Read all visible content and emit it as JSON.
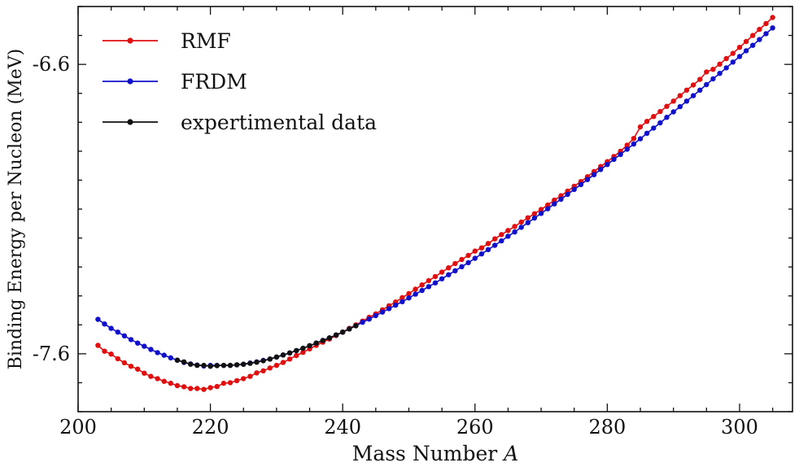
{
  "chart_data": {
    "type": "line",
    "title": "",
    "xlabel_text": "Mass Number",
    "xlabel_var": "A",
    "ylabel": "Binding Energy per Nucleon (MeV)",
    "xlim": [
      200,
      308
    ],
    "ylim": [
      -7.8,
      -6.4
    ],
    "xticks": [
      200,
      220,
      240,
      260,
      280,
      300
    ],
    "xtick_labels": [
      "200",
      "220",
      "240",
      "260",
      "280",
      "300"
    ],
    "yticks": [
      -6.6,
      -7.6
    ],
    "ytick_labels": [
      "-6.6",
      "-7.6"
    ],
    "legend_position": "top-left",
    "series": [
      {
        "name": "RMF",
        "color": "#e01010",
        "x": [
          203,
          204,
          205,
          206,
          207,
          208,
          209,
          210,
          211,
          212,
          213,
          214,
          215,
          216,
          217,
          218,
          219,
          220,
          221,
          222,
          223,
          224,
          225,
          226,
          227,
          228,
          229,
          230,
          231,
          232,
          233,
          234,
          235,
          236,
          237,
          238,
          239,
          240,
          241,
          242,
          243,
          244,
          245,
          246,
          247,
          248,
          249,
          250,
          251,
          252,
          253,
          254,
          255,
          256,
          257,
          258,
          259,
          260,
          261,
          262,
          263,
          264,
          265,
          266,
          267,
          268,
          269,
          270,
          271,
          272,
          273,
          274,
          275,
          276,
          277,
          278,
          279,
          280,
          281,
          282,
          283,
          284,
          285,
          286,
          287,
          288,
          289,
          290,
          291,
          292,
          293,
          294,
          295,
          296,
          297,
          298,
          299,
          300,
          301,
          302,
          303,
          304,
          305
        ],
        "y": [
          -7.571,
          -7.591,
          -7.601,
          -7.617,
          -7.631,
          -7.643,
          -7.653,
          -7.667,
          -7.678,
          -7.686,
          -7.695,
          -7.702,
          -7.71,
          -7.714,
          -7.72,
          -7.72,
          -7.723,
          -7.717,
          -7.713,
          -7.702,
          -7.7,
          -7.693,
          -7.686,
          -7.678,
          -7.666,
          -7.659,
          -7.649,
          -7.64,
          -7.63,
          -7.618,
          -7.606,
          -7.595,
          -7.583,
          -7.571,
          -7.56,
          -7.549,
          -7.537,
          -7.525,
          -7.512,
          -7.5,
          -7.487,
          -7.474,
          -7.462,
          -7.448,
          -7.434,
          -7.421,
          -7.406,
          -7.392,
          -7.377,
          -7.362,
          -7.347,
          -7.333,
          -7.318,
          -7.303,
          -7.288,
          -7.274,
          -7.26,
          -7.245,
          -7.234,
          -7.219,
          -7.203,
          -7.188,
          -7.174,
          -7.16,
          -7.145,
          -7.13,
          -7.116,
          -7.101,
          -7.086,
          -7.069,
          -7.054,
          -7.038,
          -7.021,
          -7.005,
          -6.988,
          -6.97,
          -6.953,
          -6.936,
          -6.918,
          -6.9,
          -6.879,
          -6.856,
          -6.816,
          -6.797,
          -6.78,
          -6.763,
          -6.745,
          -6.727,
          -6.708,
          -6.689,
          -6.671,
          -6.652,
          -6.626,
          -6.617,
          -6.599,
          -6.58,
          -6.562,
          -6.541,
          -6.521,
          -6.5,
          -6.479,
          -6.459,
          -6.438
        ]
      },
      {
        "name": "FRDM",
        "color": "#1111cc",
        "x": [
          203,
          204,
          205,
          206,
          207,
          208,
          209,
          210,
          211,
          212,
          213,
          214,
          215,
          216,
          217,
          218,
          219,
          220,
          221,
          222,
          223,
          224,
          225,
          226,
          227,
          228,
          229,
          230,
          231,
          232,
          233,
          234,
          235,
          236,
          237,
          238,
          239,
          240,
          241,
          242,
          243,
          244,
          245,
          246,
          247,
          248,
          249,
          250,
          251,
          252,
          253,
          254,
          255,
          256,
          257,
          258,
          259,
          260,
          261,
          262,
          263,
          264,
          265,
          266,
          267,
          268,
          269,
          270,
          271,
          272,
          273,
          274,
          275,
          276,
          277,
          278,
          279,
          280,
          281,
          282,
          283,
          284,
          285,
          286,
          287,
          288,
          289,
          290,
          291,
          292,
          293,
          294,
          295,
          296,
          297,
          298,
          299,
          300,
          301,
          302,
          303,
          304,
          305
        ],
        "y": [
          -7.481,
          -7.497,
          -7.512,
          -7.525,
          -7.538,
          -7.551,
          -7.563,
          -7.574,
          -7.585,
          -7.596,
          -7.605,
          -7.614,
          -7.622,
          -7.63,
          -7.635,
          -7.639,
          -7.642,
          -7.64,
          -7.64,
          -7.64,
          -7.64,
          -7.638,
          -7.636,
          -7.632,
          -7.628,
          -7.623,
          -7.618,
          -7.611,
          -7.604,
          -7.597,
          -7.589,
          -7.581,
          -7.572,
          -7.563,
          -7.554,
          -7.545,
          -7.535,
          -7.525,
          -7.514,
          -7.503,
          -7.491,
          -7.48,
          -7.468,
          -7.456,
          -7.444,
          -7.432,
          -7.42,
          -7.407,
          -7.394,
          -7.381,
          -7.368,
          -7.355,
          -7.341,
          -7.327,
          -7.313,
          -7.299,
          -7.285,
          -7.27,
          -7.255,
          -7.24,
          -7.225,
          -7.21,
          -7.194,
          -7.179,
          -7.163,
          -7.147,
          -7.131,
          -7.115,
          -7.099,
          -7.082,
          -7.066,
          -7.049,
          -7.032,
          -7.015,
          -6.998,
          -6.981,
          -6.963,
          -6.946,
          -6.928,
          -6.911,
          -6.893,
          -6.875,
          -6.857,
          -6.838,
          -6.82,
          -6.802,
          -6.783,
          -6.764,
          -6.746,
          -6.727,
          -6.708,
          -6.689,
          -6.67,
          -6.65,
          -6.631,
          -6.612,
          -6.592,
          -6.573,
          -6.553,
          -6.534,
          -6.514,
          -6.494,
          -6.474
        ]
      },
      {
        "name": "expertimental data",
        "color": "#111111",
        "x": [
          215,
          216,
          217,
          218,
          219,
          220,
          221,
          222,
          223,
          224,
          225,
          226,
          227,
          228,
          229,
          230,
          231,
          232,
          233,
          234,
          235,
          236,
          237,
          238,
          239,
          240,
          241,
          242
        ],
        "y": [
          -7.622,
          -7.628,
          -7.636,
          -7.64,
          -7.64,
          -7.643,
          -7.641,
          -7.64,
          -7.64,
          -7.638,
          -7.636,
          -7.633,
          -7.629,
          -7.624,
          -7.618,
          -7.611,
          -7.604,
          -7.597,
          -7.589,
          -7.581,
          -7.572,
          -7.563,
          -7.554,
          -7.545,
          -7.535,
          -7.525,
          -7.514,
          -7.503
        ]
      }
    ]
  }
}
